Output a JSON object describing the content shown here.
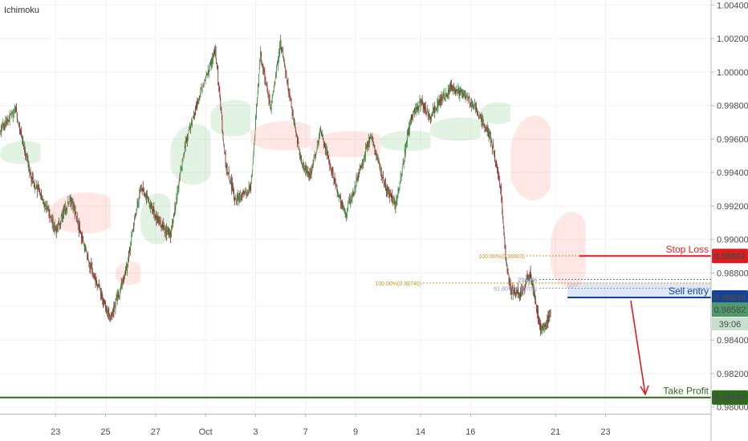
{
  "indicator_label": "Ichimoku",
  "chart_data": {
    "type": "candlestick",
    "indicator": "Ichimoku",
    "ylim": [
      0.9796,
      1.0043
    ],
    "y_ticks": [
      1.004,
      1.002,
      1.0,
      0.998,
      0.996,
      0.994,
      0.992,
      0.99,
      0.988,
      0.986,
      0.984,
      0.982,
      0.98
    ],
    "y_tick_labels": [
      "1.00400",
      "1.00200",
      "1.00000",
      "0.99800",
      "0.99600",
      "0.99400",
      "0.99200",
      "0.99000",
      "0.98800",
      "0.98600",
      "0.98400",
      "0.98200",
      "0.98000"
    ],
    "x_tick_labels": [
      "23",
      "25",
      "27",
      "Oct",
      "3",
      "7",
      "9",
      "14",
      "16",
      "21",
      "23"
    ],
    "x_tick_index": [
      11,
      21,
      31,
      41,
      51,
      61,
      71,
      84,
      94,
      111,
      121
    ],
    "price_path": [
      [
        0,
        0.9965
      ],
      [
        3,
        0.9978
      ],
      [
        6,
        0.9938
      ],
      [
        9,
        0.992
      ],
      [
        11,
        0.9905
      ],
      [
        14,
        0.9925
      ],
      [
        17,
        0.9893
      ],
      [
        20,
        0.9868
      ],
      [
        22,
        0.9853
      ],
      [
        25,
        0.988
      ],
      [
        28,
        0.9932
      ],
      [
        31,
        0.9914
      ],
      [
        34,
        0.9902
      ],
      [
        37,
        0.9958
      ],
      [
        40,
        0.9988
      ],
      [
        43,
        1.0013
      ],
      [
        45,
        0.9945
      ],
      [
        47,
        0.9924
      ],
      [
        50,
        0.993
      ],
      [
        52,
        1.001
      ],
      [
        54,
        0.9978
      ],
      [
        56,
        1.0017
      ],
      [
        58,
        0.9982
      ],
      [
        60,
        0.9948
      ],
      [
        62,
        0.9938
      ],
      [
        64,
        0.9965
      ],
      [
        67,
        0.9933
      ],
      [
        69,
        0.9915
      ],
      [
        72,
        0.9942
      ],
      [
        74,
        0.9962
      ],
      [
        77,
        0.9932
      ],
      [
        79,
        0.992
      ],
      [
        82,
        0.9972
      ],
      [
        84,
        0.9982
      ],
      [
        86,
        0.9974
      ],
      [
        88,
        0.9983
      ],
      [
        90,
        0.999
      ],
      [
        93,
        0.9986
      ],
      [
        95,
        0.9978
      ],
      [
        98,
        0.9961
      ],
      [
        100,
        0.9932
      ],
      [
        101,
        0.989
      ],
      [
        102,
        0.987
      ],
      [
        104,
        0.9868
      ],
      [
        106,
        0.988
      ],
      [
        107,
        0.9862
      ],
      [
        108,
        0.9848
      ],
      [
        109,
        0.9848
      ],
      [
        110,
        0.9857
      ]
    ],
    "ichimoku_cloud": [
      {
        "from": 0,
        "to": 8,
        "top": 0.996,
        "bottom": 0.9944,
        "color": "green"
      },
      {
        "from": 10,
        "to": 22,
        "top": 0.993,
        "bottom": 0.9902,
        "color": "red"
      },
      {
        "from": 23,
        "to": 28,
        "top": 0.9888,
        "bottom": 0.9872,
        "color": "red"
      },
      {
        "from": 28,
        "to": 34,
        "top": 0.993,
        "bottom": 0.9895,
        "color": "green"
      },
      {
        "from": 34,
        "to": 42,
        "top": 0.9972,
        "bottom": 0.993,
        "color": "green"
      },
      {
        "from": 42,
        "to": 50,
        "top": 0.9985,
        "bottom": 0.996,
        "color": "green"
      },
      {
        "from": 50,
        "to": 62,
        "top": 0.9972,
        "bottom": 0.9952,
        "color": "red"
      },
      {
        "from": 62,
        "to": 76,
        "top": 0.9966,
        "bottom": 0.9948,
        "color": "red"
      },
      {
        "from": 76,
        "to": 86,
        "top": 0.9966,
        "bottom": 0.9952,
        "color": "green"
      },
      {
        "from": 86,
        "to": 96,
        "top": 0.9974,
        "bottom": 0.9958,
        "color": "green"
      },
      {
        "from": 96,
        "to": 102,
        "top": 0.9983,
        "bottom": 0.9968,
        "color": "green"
      },
      {
        "from": 102,
        "to": 110,
        "top": 0.9978,
        "bottom": 0.992,
        "color": "red"
      },
      {
        "from": 110,
        "to": 117,
        "top": 0.992,
        "bottom": 0.9868,
        "color": "red"
      }
    ],
    "annotations": {
      "stop_loss": {
        "label": "Stop Loss",
        "value": 0.98902,
        "price_label": "0.98902",
        "color": "#e01b1b"
      },
      "sell_entry": {
        "label": "Sell entry",
        "value": 0.98654,
        "price_label": "0.98654",
        "color": "#12449c"
      },
      "take_profit": {
        "label": "Take Profit",
        "value": 0.98057,
        "price_label": "0.98057",
        "color": "#2e6b1e"
      },
      "current_price": {
        "value": 0.98582,
        "price_label": "0.98582",
        "countdown": "39:06",
        "color": "#4f9a6a"
      },
      "fib_upper": {
        "label": "100.00%(0.98903)",
        "value": 0.98903,
        "color": "#c8941e"
      },
      "fib_lower": [
        {
          "label": "100.00%(0.98740)",
          "value": 0.9874,
          "color": "#c8941e"
        },
        {
          "label": "23.60%",
          "value": 0.98762,
          "color": "#5a7fc0"
        },
        {
          "label": "61.80%(0.98709)",
          "value": 0.98709,
          "color": "#9b8fc8"
        }
      ]
    }
  }
}
